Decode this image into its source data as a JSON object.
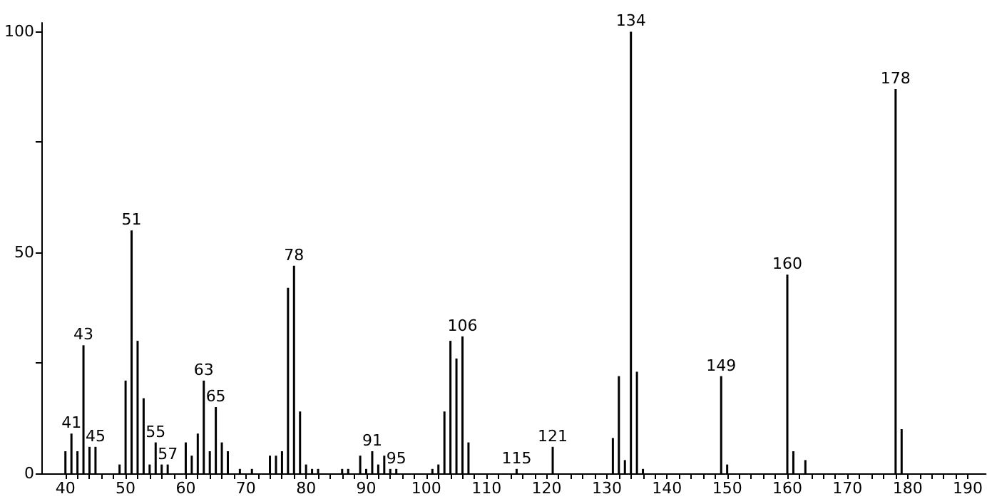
{
  "chart_data": {
    "type": "bar",
    "color": "#000000",
    "x": [
      40,
      41,
      42,
      43,
      44,
      45,
      49,
      50,
      51,
      52,
      53,
      54,
      55,
      56,
      57,
      60,
      61,
      62,
      63,
      64,
      65,
      66,
      67,
      69,
      71,
      74,
      75,
      76,
      77,
      78,
      79,
      80,
      81,
      82,
      86,
      87,
      89,
      90,
      91,
      92,
      93,
      94,
      95,
      101,
      102,
      103,
      104,
      105,
      106,
      107,
      115,
      121,
      131,
      132,
      133,
      134,
      135,
      136,
      149,
      150,
      160,
      161,
      163,
      178,
      179
    ],
    "values": [
      5,
      9,
      5,
      29,
      6,
      6,
      2,
      21,
      55,
      30,
      17,
      2,
      7,
      2,
      2,
      7,
      4,
      9,
      21,
      5,
      15,
      7,
      5,
      1,
      1,
      4,
      4,
      5,
      42,
      47,
      14,
      2,
      1,
      1,
      1,
      1,
      4,
      1,
      5,
      2,
      4,
      1,
      1,
      1,
      2,
      14,
      30,
      26,
      31,
      7,
      1,
      6,
      8,
      22,
      3,
      100,
      23,
      1,
      22,
      2,
      45,
      5,
      3,
      87,
      10
    ],
    "annotations": [
      {
        "text": "41",
        "x": 41,
        "y": 9
      },
      {
        "text": "43",
        "x": 43,
        "y": 29
      },
      {
        "text": "45",
        "x": 45,
        "y": 6
      },
      {
        "text": "51",
        "x": 51,
        "y": 55
      },
      {
        "text": "55",
        "x": 55,
        "y": 7
      },
      {
        "text": "57",
        "x": 57,
        "y": 2
      },
      {
        "text": "63",
        "x": 63,
        "y": 21
      },
      {
        "text": "65",
        "x": 65,
        "y": 15
      },
      {
        "text": "78",
        "x": 78,
        "y": 47
      },
      {
        "text": "91",
        "x": 91,
        "y": 5
      },
      {
        "text": "95",
        "x": 95,
        "y": 1
      },
      {
        "text": "106",
        "x": 106,
        "y": 31
      },
      {
        "text": "115",
        "x": 115,
        "y": 1
      },
      {
        "text": "121",
        "x": 121,
        "y": 6
      },
      {
        "text": "134",
        "x": 134,
        "y": 100
      },
      {
        "text": "149",
        "x": 149,
        "y": 22
      },
      {
        "text": "160",
        "x": 160,
        "y": 45
      },
      {
        "text": "178",
        "x": 178,
        "y": 87
      }
    ],
    "xlim": [
      36,
      193
    ],
    "xticks": [
      40,
      {
        "value": 42,
        "label": null
      },
      {
        "value": 44,
        "label": null
      },
      {
        "value": 46,
        "label": null
      },
      {
        "value": 48,
        "label": null
      },
      50,
      {
        "value": 52,
        "label": null
      },
      {
        "value": 54,
        "label": null
      },
      {
        "value": 56,
        "label": null
      },
      {
        "value": 58,
        "label": null
      },
      60,
      {
        "value": 62,
        "label": null
      },
      {
        "value": 64,
        "label": null
      },
      {
        "value": 66,
        "label": null
      },
      {
        "value": 68,
        "label": null
      },
      70,
      {
        "value": 72,
        "label": null
      },
      {
        "value": 74,
        "label": null
      },
      {
        "value": 76,
        "label": null
      },
      {
        "value": 78,
        "label": null
      },
      80,
      {
        "value": 82,
        "label": null
      },
      {
        "value": 84,
        "label": null
      },
      {
        "value": 86,
        "label": null
      },
      {
        "value": 88,
        "label": null
      },
      90,
      {
        "value": 92,
        "label": null
      },
      {
        "value": 94,
        "label": null
      },
      {
        "value": 96,
        "label": null
      },
      {
        "value": 98,
        "label": null
      },
      100,
      {
        "value": 102,
        "label": null
      },
      {
        "value": 104,
        "label": null
      },
      {
        "value": 106,
        "label": null
      },
      {
        "value": 108,
        "label": null
      },
      110,
      {
        "value": 112,
        "label": null
      },
      {
        "value": 114,
        "label": null
      },
      {
        "value": 116,
        "label": null
      },
      {
        "value": 118,
        "label": null
      },
      120,
      {
        "value": 122,
        "label": null
      },
      {
        "value": 124,
        "label": null
      },
      {
        "value": 126,
        "label": null
      },
      {
        "value": 128,
        "label": null
      },
      130,
      {
        "value": 132,
        "label": null
      },
      {
        "value": 134,
        "label": null
      },
      {
        "value": 136,
        "label": null
      },
      {
        "value": 138,
        "label": null
      },
      140,
      {
        "value": 142,
        "label": null
      },
      {
        "value": 144,
        "label": null
      },
      {
        "value": 146,
        "label": null
      },
      {
        "value": 148,
        "label": null
      },
      150,
      {
        "value": 152,
        "label": null
      },
      {
        "value": 154,
        "label": null
      },
      {
        "value": 156,
        "label": null
      },
      {
        "value": 158,
        "label": null
      },
      160,
      {
        "value": 162,
        "label": null
      },
      {
        "value": 164,
        "label": null
      },
      {
        "value": 166,
        "label": null
      },
      {
        "value": 168,
        "label": null
      },
      170,
      {
        "value": 172,
        "label": null
      },
      {
        "value": 174,
        "label": null
      },
      {
        "value": 176,
        "label": null
      },
      {
        "value": 178,
        "label": null
      },
      180,
      {
        "value": 182,
        "label": null
      },
      {
        "value": 184,
        "label": null
      },
      {
        "value": 186,
        "label": null
      },
      {
        "value": 188,
        "label": null
      },
      190
    ],
    "ylim": [
      0,
      102
    ],
    "yticks": [
      0,
      {
        "value": 25,
        "label": null
      },
      50,
      {
        "value": 75,
        "label": null
      },
      100
    ]
  }
}
